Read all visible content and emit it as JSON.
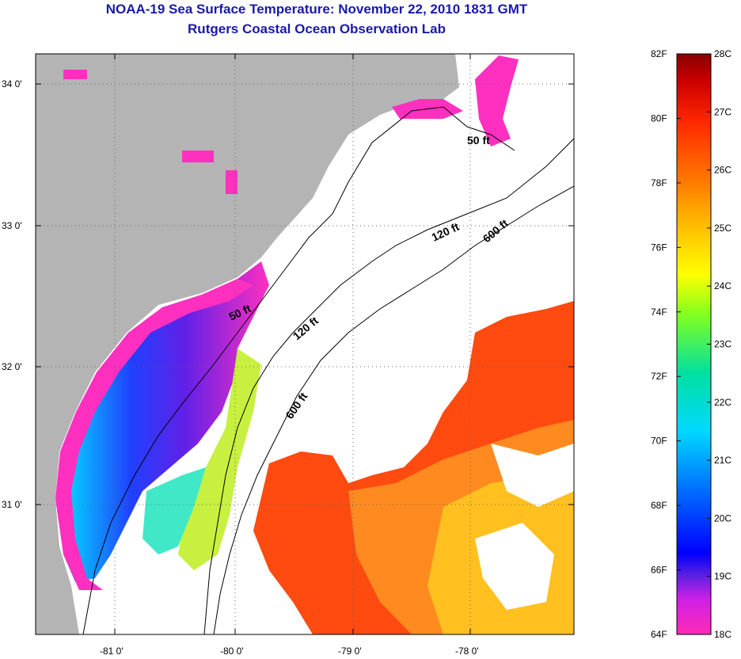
{
  "header": {
    "title": "NOAA-19 Sea Surface Temperature:  November 22, 2010 1831 GMT",
    "subtitle": "Rutgers Coastal Ocean Observation Lab"
  },
  "map": {
    "lat_labels": [
      "34 0'",
      "33 0'",
      "32 0'",
      "31 0'"
    ],
    "lon_labels": [
      "-81 0'",
      "-80 0'",
      "-79 0'",
      "-78 0'"
    ],
    "contour_labels": [
      "50 ft",
      "50 ft",
      "120 ft",
      "120 ft",
      "600 ft",
      "600 ft"
    ],
    "colors": {
      "land": "#b4b4b4",
      "cloud_mask": "#ffffff",
      "cold": "#ff2aa0",
      "warm": "#ff3c00"
    }
  },
  "colorbar": {
    "fahrenheit_labels": [
      "82F",
      "80F",
      "78F",
      "76F",
      "74F",
      "72F",
      "70F",
      "68F",
      "66F",
      "64F"
    ],
    "celsius_labels": [
      "28C",
      "27C",
      "26C",
      "25C",
      "24C",
      "23C",
      "22C",
      "21C",
      "20C",
      "19C",
      "18C"
    ],
    "range_f": [
      64,
      82
    ],
    "range_c": [
      18,
      28
    ]
  }
}
